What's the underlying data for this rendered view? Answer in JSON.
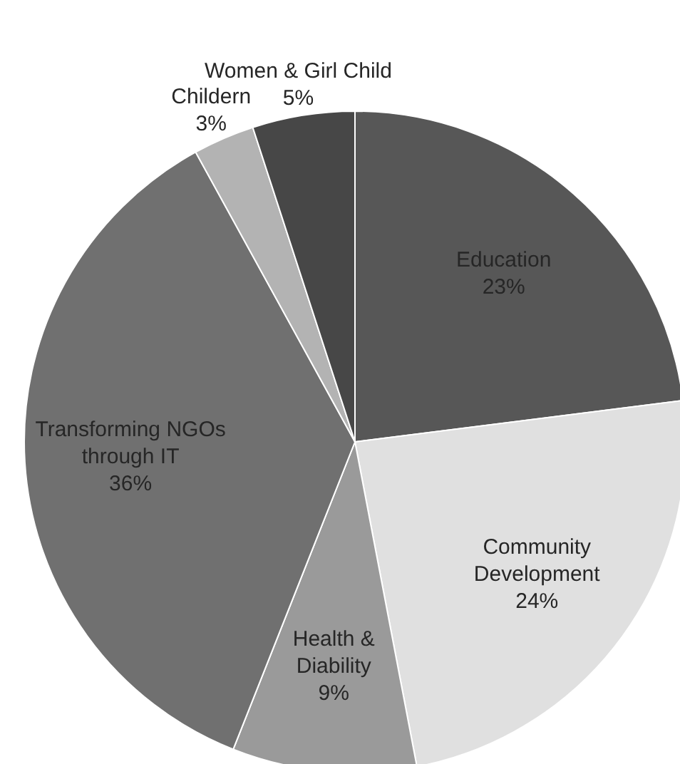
{
  "chart_data": {
    "type": "pie",
    "categories": [
      "Education",
      "Community Development",
      "Health & Diability",
      "Transforming NGOs through IT",
      "Childern",
      "Women & Girl Child"
    ],
    "values": [
      23,
      24,
      9,
      36,
      3,
      5
    ],
    "value_labels": [
      "23%",
      "24%",
      "9%",
      "36%",
      "3%",
      "5%"
    ],
    "colors": [
      "#575757",
      "#e0e0e0",
      "#9a9a9a",
      "#707070",
      "#b3b3b3",
      "#474747"
    ]
  }
}
